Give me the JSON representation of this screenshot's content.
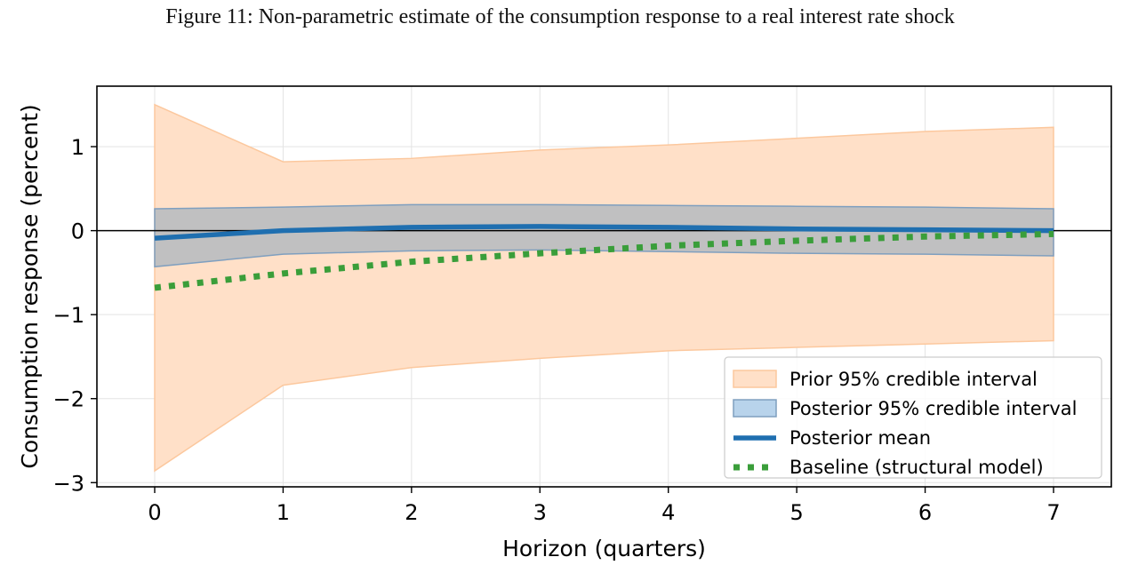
{
  "figure": {
    "caption": "Figure 11: Non-parametric estimate of the consumption response to a real interest rate shock"
  },
  "chart_data": {
    "type": "line",
    "x": [
      0,
      1,
      2,
      3,
      4,
      5,
      6,
      7
    ],
    "xlabel": "Horizon (quarters)",
    "ylabel": "Consumption response (percent)",
    "xlim": [
      -0.45,
      7.45
    ],
    "ylim": [
      -3.05,
      1.72
    ],
    "xticks": [
      0,
      1,
      2,
      3,
      4,
      5,
      6,
      7
    ],
    "yticks": [
      -3,
      -2,
      -1,
      0,
      1
    ],
    "ytick_labels": [
      "−3",
      "−2",
      "−1",
      "0",
      "1"
    ],
    "grid": true,
    "zero_line": true,
    "legend_position": "lower-right",
    "series": [
      {
        "name": "Prior 95% credible interval",
        "kind": "band",
        "color": "#ffe0c8",
        "edge_color": "#fcc89e",
        "lower": [
          -2.86,
          -1.84,
          -1.63,
          -1.52,
          -1.43,
          -1.39,
          -1.35,
          -1.31
        ],
        "upper": [
          1.5,
          0.82,
          0.86,
          0.96,
          1.02,
          1.1,
          1.18,
          1.23
        ]
      },
      {
        "name": "Posterior 95% credible interval",
        "kind": "band",
        "color": "#8da6bb",
        "fill_opacity": 0.55,
        "edge_color": "#7f9fbf",
        "legend_color": "#b8d3eb",
        "lower": [
          -0.43,
          -0.28,
          -0.24,
          -0.23,
          -0.25,
          -0.27,
          -0.28,
          -0.3
        ],
        "upper": [
          0.26,
          0.28,
          0.31,
          0.31,
          0.3,
          0.29,
          0.28,
          0.26
        ]
      },
      {
        "name": "Posterior mean",
        "kind": "line",
        "color": "#1f6fb0",
        "values": [
          -0.09,
          0.0,
          0.04,
          0.05,
          0.04,
          0.02,
          0.01,
          0.0
        ]
      },
      {
        "name": "Baseline (structural model)",
        "kind": "dotted",
        "color": "#3a9e3a",
        "values": [
          -0.68,
          -0.51,
          -0.37,
          -0.27,
          -0.18,
          -0.12,
          -0.07,
          -0.04
        ]
      }
    ]
  }
}
